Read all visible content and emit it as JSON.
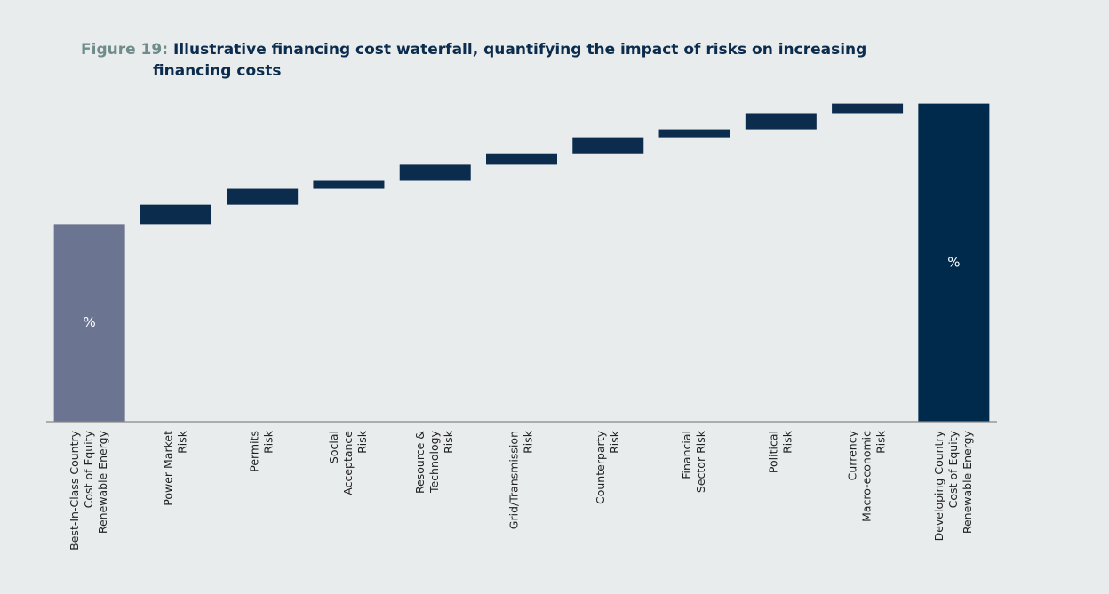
{
  "chart_data": {
    "type": "waterfall",
    "title_prefix": "Figure 19:",
    "title_lines": [
      "Illustrative financing cost waterfall, quantifying the impact of risks on increasing",
      "financing costs"
    ],
    "categories": [
      [
        "Best-In-Class Country",
        "Cost of Equity",
        "Renewable Energy"
      ],
      [
        "Power Market",
        "Risk"
      ],
      [
        "Permits",
        "Risk"
      ],
      [
        "Social",
        "Acceptance",
        "Risk"
      ],
      [
        "Resource &",
        "Technology",
        "Risk"
      ],
      [
        "Grid/Transmission",
        "Risk"
      ],
      [
        "Counterparty",
        "Risk"
      ],
      [
        "Financial",
        "Sector  Risk"
      ],
      [
        "Political",
        "Risk"
      ],
      [
        "Currency",
        "Macro-economic",
        "Risk"
      ],
      [
        "Developing Country",
        "Cost of Equity",
        "Renewable Energy"
      ]
    ],
    "values": [
      61.5,
      6,
      5,
      2.5,
      5,
      3.5,
      5,
      2.5,
      5,
      3,
      99
    ],
    "bar_kinds": [
      "total",
      "step",
      "step",
      "step",
      "step",
      "step",
      "step",
      "step",
      "step",
      "step",
      "total"
    ],
    "bar_text": [
      "%",
      null,
      null,
      null,
      null,
      null,
      null,
      null,
      null,
      null,
      "%"
    ],
    "colors": {
      "start": "#6b7491",
      "step": "#0c2c4e",
      "end": "#002a4c"
    },
    "ylim": [
      0,
      100
    ]
  }
}
